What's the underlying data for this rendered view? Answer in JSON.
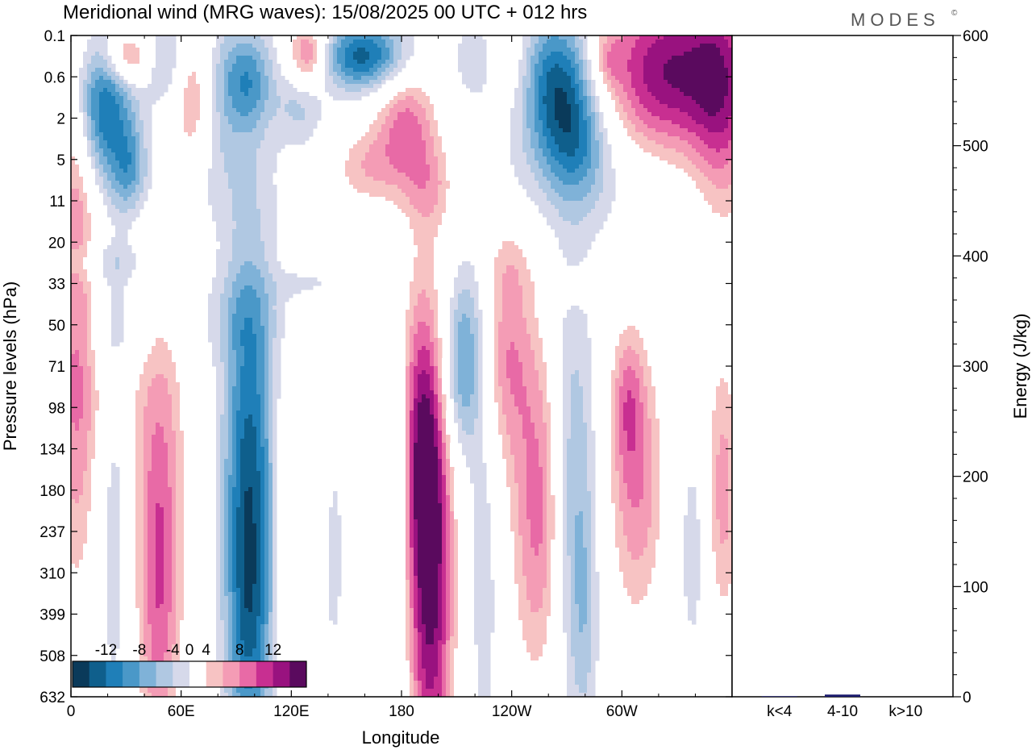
{
  "title": "Meridional wind (MRG waves):  15/08/2025  00 UTC  + 012 hrs",
  "logo": "MODES",
  "logo_mark": "©",
  "chart_data": [
    {
      "type": "heatmap",
      "title": "Meridional wind (MRG waves)",
      "xlabel": "Longitude",
      "ylabel": "Pressure levels (hPa)",
      "x_ticks": [
        "0",
        "60E",
        "120E",
        "180",
        "120W",
        "60W"
      ],
      "x_tick_lon": [
        0,
        60,
        120,
        180,
        240,
        300
      ],
      "xlim": [
        0,
        360
      ],
      "y_ticks": [
        "0.1",
        "0.6",
        "2",
        "5",
        "11",
        "20",
        "33",
        "50",
        "71",
        "98",
        "134",
        "180",
        "237",
        "310",
        "399",
        "508",
        "632"
      ],
      "colorbar": {
        "labels": [
          "-12",
          "-8",
          "-4",
          "0",
          "4",
          "8",
          "12"
        ],
        "levels": [
          -14,
          -12,
          -10,
          -8,
          -6,
          -4,
          -2,
          2,
          4,
          6,
          8,
          10,
          12,
          14
        ],
        "colors": [
          "#0a3a5a",
          "#0f5f8c",
          "#1f7fb8",
          "#4a98c8",
          "#7fb2d8",
          "#b0c8e2",
          "#d6d9ea",
          "#ffffff",
          "#f7c3c3",
          "#f49cb5",
          "#e86aa6",
          "#c82f91",
          "#99127f",
          "#5a0a5e"
        ]
      },
      "blobs": [
        {
          "lon": 3,
          "lev": 7.5,
          "lw": 9,
          "lh": 4.2,
          "amp": 9
        },
        {
          "lon": 24,
          "lev": 12,
          "lw": 6,
          "lh": 3.5,
          "amp": -4
        },
        {
          "lon": 48,
          "lev": 11.5,
          "lw": 11,
          "lh": 4.8,
          "amp": 8
        },
        {
          "lon": 48,
          "lev": 13.5,
          "lw": 6,
          "lh": 2.5,
          "amp": 3
        },
        {
          "lon": 97,
          "lev": 11,
          "lw": 10,
          "lh": 4.2,
          "amp": -13
        },
        {
          "lon": 97,
          "lev": 14.5,
          "lw": 8,
          "lh": 2.2,
          "amp": -4
        },
        {
          "lon": 113,
          "lev": 11.5,
          "lw": 3,
          "lh": 2.2,
          "amp": 2.4
        },
        {
          "lon": 117,
          "lev": 15.2,
          "lw": 3,
          "lh": 1.5,
          "amp": 2.6
        },
        {
          "lon": 128,
          "lev": 10.5,
          "lw": 5,
          "lh": 1.4,
          "amp": 2.5
        },
        {
          "lon": 143,
          "lev": 12.5,
          "lw": 5,
          "lh": 2.5,
          "amp": -2.6
        },
        {
          "lon": 165,
          "lev": 12.5,
          "lw": 5,
          "lh": 3.5,
          "amp": 2.4
        },
        {
          "lon": 176,
          "lev": 14.5,
          "lw": 6,
          "lh": 3.5,
          "amp": -2.6
        },
        {
          "lon": 188,
          "lev": 8.8,
          "lw": 6,
          "lh": 2.5,
          "amp": 3
        },
        {
          "lon": 196,
          "lev": 13.5,
          "lw": 9,
          "lh": 4.5,
          "amp": 13
        },
        {
          "lon": 193,
          "lev": 10.5,
          "lw": 8,
          "lh": 2.5,
          "amp": 7
        },
        {
          "lon": 180,
          "lev": 10.3,
          "lw": 3,
          "lh": 1,
          "amp": -3.5
        },
        {
          "lon": 212,
          "lev": 8.2,
          "lw": 8,
          "lh": 1.5,
          "amp": -7
        },
        {
          "lon": 217,
          "lev": 7.2,
          "lw": 8,
          "lh": 1.5,
          "amp": -3
        },
        {
          "lon": 225,
          "lev": 13,
          "lw": 6,
          "lh": 3.5,
          "amp": -3.5
        },
        {
          "lon": 237,
          "lev": 7.7,
          "lw": 10,
          "lh": 1.8,
          "amp": 7
        },
        {
          "lon": 257,
          "lev": 11.5,
          "lw": 12,
          "lh": 3,
          "amp": 10
        },
        {
          "lon": 272,
          "lev": 11.2,
          "lw": 9,
          "lh": 3.5,
          "amp": -9
        },
        {
          "lon": 280,
          "lev": 14.2,
          "lw": 5,
          "lh": 2,
          "amp": -3
        },
        {
          "lon": 303,
          "lev": 8.8,
          "lw": 6,
          "lh": 1.2,
          "amp": 5
        },
        {
          "lon": 308,
          "lev": 10.8,
          "lw": 11,
          "lh": 2.5,
          "amp": 8
        },
        {
          "lon": 339,
          "lev": 12.4,
          "lw": 6,
          "lh": 2,
          "amp": -3.5
        },
        {
          "lon": 355,
          "lev": 11,
          "lw": 7,
          "lh": 2.5,
          "amp": 7
        },
        {
          "lon": 28,
          "lev": 7,
          "lw": 22,
          "lh": 0.8,
          "amp": -2.5
        },
        {
          "lon": 90,
          "lev": 6.8,
          "lw": 18,
          "lh": 0.7,
          "amp": -2.3
        },
        {
          "lon": 25,
          "lev": 8.8,
          "lw": 8,
          "lh": 0.8,
          "amp": 2.4
        },
        {
          "lon": 132,
          "lev": 9.2,
          "lw": 6,
          "lh": 1.5,
          "amp": 2.4
        },
        {
          "lon": 17,
          "lev": 1.7,
          "lw": 12,
          "lh": 1.2,
          "amp": -12
        },
        {
          "lon": 31,
          "lev": 0.5,
          "lw": 9,
          "lh": 0.45,
          "amp": 9
        },
        {
          "lon": 52,
          "lev": 0.6,
          "lw": 9,
          "lh": 0.8,
          "amp": -6
        },
        {
          "lon": 66,
          "lev": 1.5,
          "lw": 8,
          "lh": 1.3,
          "amp": 7
        },
        {
          "lon": 80,
          "lev": 1.4,
          "lw": 8,
          "lh": 1.5,
          "amp": -3
        },
        {
          "lon": 96,
          "lev": 1.1,
          "lw": 10,
          "lh": 0.9,
          "amp": -9
        },
        {
          "lon": 129,
          "lev": 0.5,
          "lw": 8,
          "lh": 0.6,
          "amp": 11
        },
        {
          "lon": 160,
          "lev": 0.5,
          "lw": 18,
          "lh": 0.6,
          "amp": -13
        },
        {
          "lon": 125,
          "lev": 1.6,
          "lw": 9,
          "lh": 0.7,
          "amp": -5
        },
        {
          "lon": 182,
          "lev": 2.3,
          "lw": 12,
          "lh": 1.2,
          "amp": 9
        },
        {
          "lon": 158,
          "lev": 3.2,
          "lw": 12,
          "lh": 0.7,
          "amp": 5
        },
        {
          "lon": 198,
          "lev": 3.7,
          "lw": 10,
          "lh": 0.8,
          "amp": 4
        },
        {
          "lon": 265,
          "lev": 1.2,
          "lw": 14,
          "lh": 1.3,
          "amp": -13
        },
        {
          "lon": 277,
          "lev": 2.6,
          "lw": 12,
          "lh": 1,
          "amp": -6
        },
        {
          "lon": 240,
          "lev": 0.7,
          "lw": 8,
          "lh": 0.8,
          "amp": 2.7
        },
        {
          "lon": 220,
          "lev": 0.6,
          "lw": 10,
          "lh": 0.8,
          "amp": -3
        },
        {
          "lon": 325,
          "lev": 0.9,
          "lw": 26,
          "lh": 1.5,
          "amp": 14
        },
        {
          "lon": 355,
          "lev": 1.6,
          "lw": 12,
          "lh": 2.2,
          "amp": 8
        },
        {
          "lon": 292,
          "lev": 0.6,
          "lw": 6,
          "lh": 0.5,
          "amp": 4
        },
        {
          "lon": 32,
          "lev": 3.2,
          "lw": 7,
          "lh": 0.8,
          "amp": -6
        },
        {
          "lon": 3,
          "lev": 2.8,
          "lw": 6,
          "lh": 1.5,
          "amp": 3
        },
        {
          "lon": 280,
          "lev": 3.5,
          "lw": 40,
          "lh": 1.2,
          "amp": -2.5
        },
        {
          "lon": 55,
          "lev": 3.5,
          "lw": 40,
          "lh": 1,
          "amp": -2.3
        },
        {
          "lon": 20,
          "lev": 5.5,
          "lw": 25,
          "lh": 0.4,
          "amp": -3.5
        },
        {
          "lon": 130,
          "lev": 6,
          "lw": 15,
          "lh": 0.3,
          "amp": -2.3
        },
        {
          "lon": 239,
          "lev": 5.4,
          "lw": 10,
          "lh": 0.7,
          "amp": 2.7
        },
        {
          "lon": 273,
          "lev": 6.1,
          "lw": 12,
          "lh": 0.3,
          "amp": 2.5
        },
        {
          "lon": 318,
          "lev": 5.5,
          "lw": 12,
          "lh": 0.4,
          "amp": 2.6
        }
      ]
    },
    {
      "type": "bar",
      "categories": [
        "k<4",
        "4-10",
        "k>10"
      ],
      "values": [
        0.5,
        2,
        0
      ],
      "ylabel": "Energy (J/kg)",
      "ylim": [
        0,
        600
      ],
      "y_ticks": [
        "0",
        "100",
        "200",
        "300",
        "400",
        "500",
        "600"
      ],
      "bar_color": "#1a1a6e"
    }
  ]
}
